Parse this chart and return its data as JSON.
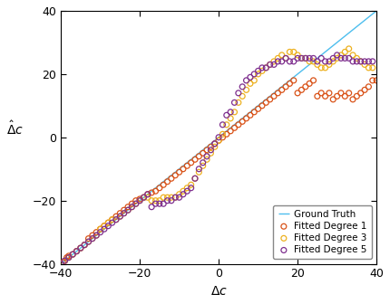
{
  "title": "",
  "xlabel": "$\\Delta c$",
  "ylabel": "$\\hat{\\Delta}c$",
  "xlim": [
    -40,
    40
  ],
  "ylim": [
    -40,
    40
  ],
  "xticks": [
    -40,
    -20,
    0,
    20,
    40
  ],
  "yticks": [
    -40,
    -20,
    0,
    20,
    40
  ],
  "ground_truth_color": "#4DBEEE",
  "deg1_color": "#D95319",
  "deg3_color": "#EDB120",
  "deg5_color": "#7E2F8E",
  "deg1_x": [
    -40,
    -39.5,
    -39,
    -38.5,
    -38,
    -37,
    -36,
    -35,
    -34,
    -33,
    -32,
    -31,
    -30,
    -29,
    -28,
    -27,
    -26,
    -25,
    -24,
    -23,
    -22,
    -21,
    -20,
    -19,
    -18,
    -17,
    -16,
    -15,
    -14,
    -13,
    -12,
    -11,
    -10,
    -9,
    -8,
    -7,
    -6,
    -5,
    -4,
    -3,
    -2,
    -1,
    0,
    1,
    2,
    3,
    4,
    5,
    6,
    7,
    8,
    9,
    10,
    11,
    12,
    13,
    14,
    15,
    16,
    17,
    18,
    19,
    20,
    21,
    22,
    23,
    24,
    25,
    26,
    27,
    28,
    29,
    30,
    31,
    32,
    33,
    34,
    35,
    36,
    37,
    38,
    39,
    40
  ],
  "deg1_y": [
    -40,
    -39.5,
    -39,
    -38,
    -37.5,
    -37,
    -36,
    -35,
    -34,
    -32,
    -31,
    -30,
    -29,
    -28,
    -27,
    -26,
    -25,
    -24,
    -23,
    -22,
    -21,
    -20,
    -19.5,
    -19,
    -18,
    -17.5,
    -17,
    -16,
    -15,
    -14,
    -13,
    -12,
    -11,
    -10,
    -9,
    -8,
    -7,
    -6,
    -5,
    -4,
    -3,
    -2,
    -1,
    0,
    1,
    2,
    3,
    4,
    5,
    6,
    7,
    8,
    9,
    10,
    11,
    12,
    13,
    14,
    15,
    16,
    17,
    18,
    14,
    15,
    16,
    17,
    18,
    13,
    14,
    13,
    14,
    12,
    13,
    14,
    13,
    14,
    12,
    13,
    14,
    15,
    16,
    18,
    18
  ],
  "deg3_x": [
    -40,
    -39,
    -38,
    -37,
    -36,
    -35,
    -34,
    -33,
    -32,
    -31,
    -30,
    -29,
    -28,
    -27,
    -26,
    -25,
    -24,
    -23,
    -22,
    -21,
    -20,
    -19,
    -18,
    -17,
    -16,
    -15,
    -14,
    -13,
    -12,
    -11,
    -10,
    -9,
    -8,
    -7,
    -6,
    -5,
    -4,
    -3,
    -2,
    -1,
    0,
    1,
    2,
    3,
    4,
    5,
    6,
    7,
    8,
    9,
    10,
    11,
    12,
    13,
    14,
    15,
    16,
    17,
    18,
    19,
    20,
    21,
    22,
    23,
    24,
    25,
    26,
    27,
    28,
    29,
    30,
    31,
    32,
    33,
    34,
    35,
    36,
    37,
    38,
    39
  ],
  "deg3_y": [
    -40,
    -39,
    -38,
    -37,
    -36,
    -35,
    -34,
    -33,
    -32,
    -31,
    -29,
    -28,
    -27,
    -26,
    -26,
    -25,
    -24,
    -23,
    -22,
    -21,
    -20,
    -19,
    -19,
    -20,
    -20,
    -20,
    -19,
    -19,
    -19,
    -19,
    -18,
    -17,
    -16,
    -15,
    -13,
    -11,
    -9,
    -7,
    -5,
    -3,
    -1,
    1,
    4,
    6,
    8,
    11,
    13,
    15,
    17,
    18,
    20,
    21,
    22,
    23,
    24,
    25,
    26,
    25,
    27,
    27,
    26,
    25,
    25,
    24,
    24,
    23,
    22,
    22,
    23,
    24,
    25,
    26,
    27,
    28,
    26,
    25,
    24,
    23,
    22,
    22
  ],
  "deg5_x": [
    -40,
    -39,
    -38,
    -37,
    -36,
    -35,
    -34,
    -33,
    -32,
    -31,
    -30,
    -29,
    -28,
    -27,
    -26,
    -25,
    -24,
    -23,
    -22,
    -21,
    -20,
    -19,
    -18,
    -17,
    -16,
    -15,
    -14,
    -13,
    -12,
    -11,
    -10,
    -9,
    -8,
    -7,
    -6,
    -5,
    -4,
    -3,
    -2,
    -1,
    0,
    1,
    2,
    3,
    4,
    5,
    6,
    7,
    8,
    9,
    10,
    11,
    12,
    13,
    14,
    15,
    16,
    17,
    18,
    19,
    20,
    21,
    22,
    23,
    24,
    25,
    26,
    27,
    28,
    29,
    30,
    31,
    32,
    33,
    34,
    35,
    36,
    37,
    38,
    39
  ],
  "deg5_y": [
    -40,
    -39,
    -38,
    -37,
    -36,
    -35,
    -34,
    -33,
    -32,
    -31,
    -30,
    -29,
    -28,
    -27,
    -26,
    -25,
    -24,
    -23,
    -22,
    -21,
    -20,
    -19,
    -18,
    -22,
    -21,
    -21,
    -21,
    -20,
    -20,
    -19,
    -19,
    -18,
    -17,
    -16,
    -13,
    -10,
    -8,
    -6,
    -4,
    -2,
    0,
    4,
    7,
    8,
    11,
    14,
    16,
    18,
    19,
    20,
    21,
    22,
    22,
    23,
    23,
    24,
    24,
    25,
    24,
    24,
    25,
    25,
    25,
    25,
    25,
    24,
    25,
    24,
    24,
    25,
    26,
    25,
    25,
    25,
    24,
    24,
    24,
    24,
    24,
    24
  ]
}
